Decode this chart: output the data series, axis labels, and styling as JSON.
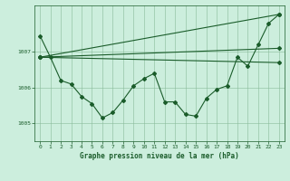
{
  "background_color": "#cceedd",
  "plot_bg_color": "#cceedd",
  "grid_color": "#88bb99",
  "line_color": "#1a5c2a",
  "title": "Graphe pression niveau de la mer (hPa)",
  "xlim": [
    -0.5,
    23.5
  ],
  "ylim": [
    1004.5,
    1008.3
  ],
  "yticks": [
    1005,
    1006,
    1007
  ],
  "xticks": [
    0,
    1,
    2,
    3,
    4,
    5,
    6,
    7,
    8,
    9,
    10,
    11,
    12,
    13,
    14,
    15,
    16,
    17,
    18,
    19,
    20,
    21,
    22,
    23
  ],
  "series1_x": [
    0,
    1,
    2,
    3,
    4,
    5,
    6,
    7,
    8,
    9,
    10,
    11,
    12,
    13,
    14,
    15,
    16,
    17,
    18,
    19,
    20,
    21,
    22,
    23
  ],
  "series1_y": [
    1007.45,
    1006.85,
    1006.2,
    1006.1,
    1005.75,
    1005.55,
    1005.15,
    1005.3,
    1005.65,
    1006.05,
    1006.25,
    1006.4,
    1005.6,
    1005.6,
    1005.25,
    1005.2,
    1005.7,
    1005.95,
    1006.05,
    1006.85,
    1006.6,
    1007.2,
    1007.8,
    1008.05
  ],
  "series2_x": [
    0,
    23
  ],
  "series2_y": [
    1006.85,
    1008.05
  ],
  "series3_x": [
    0,
    23
  ],
  "series3_y": [
    1006.85,
    1007.1
  ],
  "series4_x": [
    0,
    23
  ],
  "series4_y": [
    1006.85,
    1006.7
  ],
  "marker_style": "D",
  "marker_size": 2.0,
  "linewidth": 0.8
}
